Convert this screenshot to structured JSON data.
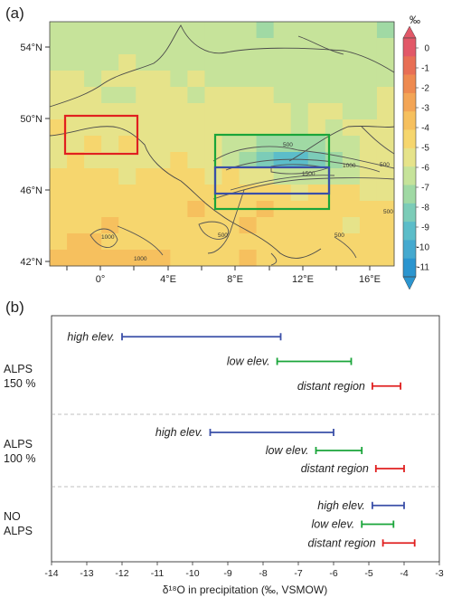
{
  "panel_a": {
    "label": "(a)",
    "colorbar": {
      "unit": "‰",
      "ticks": [
        "0",
        "-1",
        "-2",
        "-3",
        "-4",
        "-5",
        "-6",
        "-7",
        "-8",
        "-9",
        "-10",
        "-11"
      ],
      "vmin": -11.5,
      "vmax": 0.5,
      "colors": [
        "#2b95cf",
        "#45a9cf",
        "#5cbdc9",
        "#7cccb8",
        "#a0d9a4",
        "#c6e39a",
        "#e6e38a",
        "#f6d66e",
        "#f6c05e",
        "#f3a556",
        "#ee8a50",
        "#e86f55",
        "#e25868"
      ]
    },
    "lat_ticks": [
      "54°N",
      "50°N",
      "46°N",
      "42°N"
    ],
    "lon_ticks": [
      "0°",
      "4°E",
      "8°E",
      "12°E",
      "16°E"
    ],
    "contour_labels": [
      "500",
      "1000",
      "1500",
      "500",
      "1000",
      "500",
      "500",
      "1000",
      "500"
    ],
    "regions": [
      {
        "name": "distant region",
        "color": "#e02020"
      },
      {
        "name": "low elev.",
        "color": "#1aa53a"
      },
      {
        "name": "high elev.",
        "color": "#3a4fa8"
      }
    ]
  },
  "panel_b": {
    "label": "(b)",
    "xlabel": "δ¹⁸O in precipitation (‰, VSMOW)",
    "chart_data": {
      "type": "range",
      "xlim": [
        -14,
        -3
      ],
      "x_ticks": [
        -14,
        -13,
        -12,
        -11,
        -10,
        -9,
        -8,
        -7,
        -6,
        -5,
        -4,
        -3
      ],
      "groups": [
        {
          "label_lines": [
            "ALPS",
            "150 %"
          ],
          "bars": [
            {
              "name": "high elev.",
              "color": "#3a4fa8",
              "min": -12.0,
              "max": -7.5
            },
            {
              "name": "low elev.",
              "color": "#1aa53a",
              "min": -7.6,
              "max": -5.5
            },
            {
              "name": "distant region",
              "color": "#e02020",
              "min": -4.9,
              "max": -4.1
            }
          ]
        },
        {
          "label_lines": [
            "ALPS",
            "100 %"
          ],
          "bars": [
            {
              "name": "high elev.",
              "color": "#3a4fa8",
              "min": -9.5,
              "max": -6.0
            },
            {
              "name": "low elev.",
              "color": "#1aa53a",
              "min": -6.5,
              "max": -5.2
            },
            {
              "name": "distant region",
              "color": "#e02020",
              "min": -4.8,
              "max": -4.0
            }
          ]
        },
        {
          "label_lines": [
            "NO",
            "ALPS"
          ],
          "bars": [
            {
              "name": "high elev.",
              "color": "#3a4fa8",
              "min": -4.9,
              "max": -4.0
            },
            {
              "name": "low elev.",
              "color": "#1aa53a",
              "min": -5.2,
              "max": -4.3
            },
            {
              "name": "distant region",
              "color": "#e02020",
              "min": -4.6,
              "max": -3.7
            }
          ]
        }
      ]
    }
  }
}
